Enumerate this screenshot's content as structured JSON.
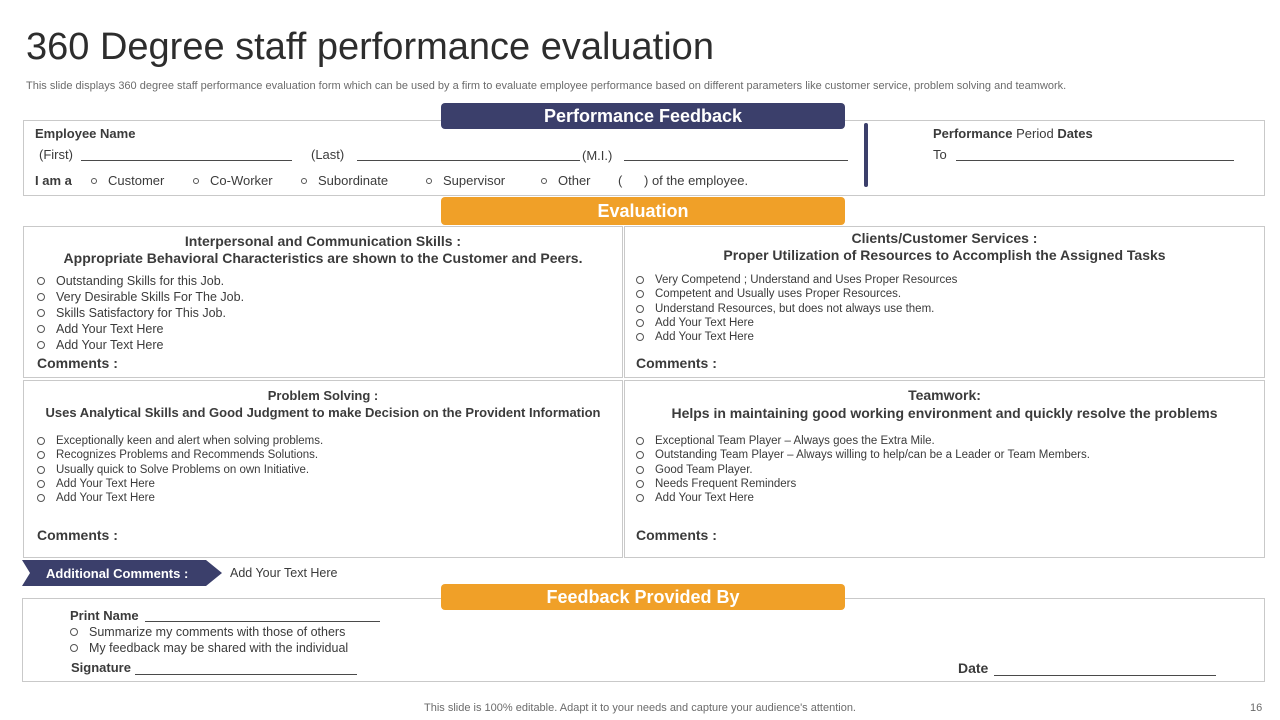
{
  "header": {
    "title": "360 Degree staff  performance evaluation",
    "subtitle": "This slide displays 360 degree staff performance evaluation form which can be used by a firm to evaluate employee performance based on different parameters like customer service, problem solving and teamwork."
  },
  "performance_feedback": {
    "banner": "Performance Feedback",
    "employee_name_label": "Employee Name",
    "first_label": "(First)",
    "last_label": "(Last)",
    "mi_label": "(M.I.)",
    "i_am_a_label": "I am a",
    "options": [
      "Customer",
      "Co-Worker",
      "Subordinate",
      "Supervisor",
      "Other"
    ],
    "of_employee_label": "(      ) of the employee.",
    "period_dates_bold1": "Performance",
    "period_dates_mid": "Period",
    "period_dates_bold2": "Dates",
    "to_label": "To"
  },
  "evaluation": {
    "banner": "Evaluation",
    "sections": [
      {
        "title": "Interpersonal and Communication  Skills :",
        "subtitle": "Appropriate Behavioral Characteristics are shown to the Customer and Peers.",
        "items": [
          "Outstanding Skills for this Job.",
          "Very Desirable  Skills For The  Job.",
          "Skills Satisfactory for This Job.",
          "Add Your Text Here",
          "Add Your Text Here"
        ],
        "comments": "Comments :"
      },
      {
        "title": "Clients/Customer Services :",
        "subtitle": "Proper Utilization of Resources to Accomplish the Assigned Tasks",
        "items": [
          "Very Competend ; Understand and Uses Proper Resources",
          "Competent and Usually uses Proper Resources.",
          "Understand Resources, but does not always use them.",
          "Add Your Text Here",
          "Add Your Text Here"
        ],
        "comments": "Comments :"
      },
      {
        "title": "Problem Solving :",
        "subtitle": "Uses Analytical Skills and Good Judgment to make Decision on the Provident Information",
        "items": [
          "Exceptionally keen and alert when solving problems.",
          "Recognizes Problems and Recommends Solutions.",
          "Usually quick to Solve Problems on own Initiative.",
          "Add Your Text Here",
          "Add Your Text Here"
        ],
        "comments": "Comments :"
      },
      {
        "title": "Teamwork:",
        "subtitle": "Helps in maintaining good working environment and quickly  resolve the problems",
        "items": [
          "Exceptional Team Player – Always goes the Extra  Mile.",
          "Outstanding Team Player – Always  willing to help/can be a Leader or Team Members.",
          "Good Team Player.",
          "Needs Frequent Reminders",
          "Add Your Text Here"
        ],
        "comments": "Comments :"
      }
    ]
  },
  "additional_comments": {
    "label": "Additional Comments :",
    "text": "Add Your Text Here"
  },
  "feedback_provided_by": {
    "banner": "Feedback Provided By",
    "print_name": "Print Name",
    "items": [
      "Summarize  my comments with those of others",
      "My feedback  may be shared with the individual"
    ],
    "signature": "Signature",
    "date": "Date"
  },
  "footer": {
    "text": "This slide is 100% editable. Adapt it to your needs and capture your audience's attention.",
    "page_number": "16"
  },
  "colors": {
    "navy": "#3b3f6b",
    "orange": "#f0a028",
    "border": "#c9c9c9"
  }
}
